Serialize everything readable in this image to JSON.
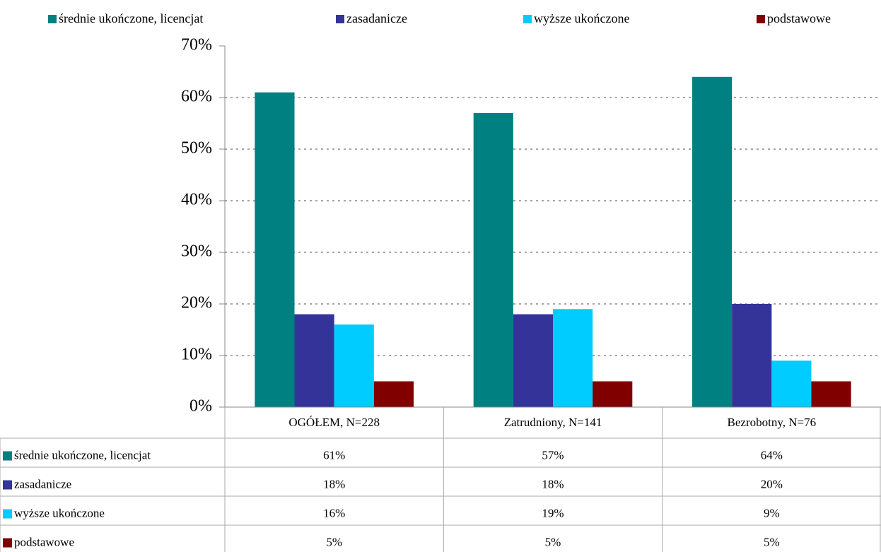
{
  "chart_data": {
    "type": "bar",
    "categories": [
      "OGÓŁEM, N=228",
      "Zatrudniony, N=141",
      "Bezrobotny, N=76"
    ],
    "series": [
      {
        "name": "średnie ukończone, licencjat",
        "color": "#008080",
        "values": [
          61,
          57,
          64
        ],
        "value_labels": [
          "61%",
          "57%",
          "64%"
        ]
      },
      {
        "name": "zasadanicze",
        "color": "#333399",
        "values": [
          18,
          18,
          20
        ],
        "value_labels": [
          "18%",
          "18%",
          "20%"
        ]
      },
      {
        "name": "wyższe ukończone",
        "color": "#00ccff",
        "values": [
          16,
          19,
          9
        ],
        "value_labels": [
          "16%",
          "19%",
          "9%"
        ]
      },
      {
        "name": "podstawowe",
        "color": "#800000",
        "values": [
          5,
          5,
          5
        ],
        "value_labels": [
          "5%",
          "5%",
          "5%"
        ]
      }
    ],
    "ylim": [
      0,
      70
    ],
    "yticks": [
      {
        "value": 0,
        "label": "0%"
      },
      {
        "value": 10,
        "label": "10%"
      },
      {
        "value": 20,
        "label": "20%"
      },
      {
        "value": 30,
        "label": "30%"
      },
      {
        "value": 40,
        "label": "40%"
      },
      {
        "value": 50,
        "label": "50%"
      },
      {
        "value": 60,
        "label": "60%"
      },
      {
        "value": 70,
        "label": "70%"
      }
    ],
    "grid": true,
    "legend": "top"
  }
}
